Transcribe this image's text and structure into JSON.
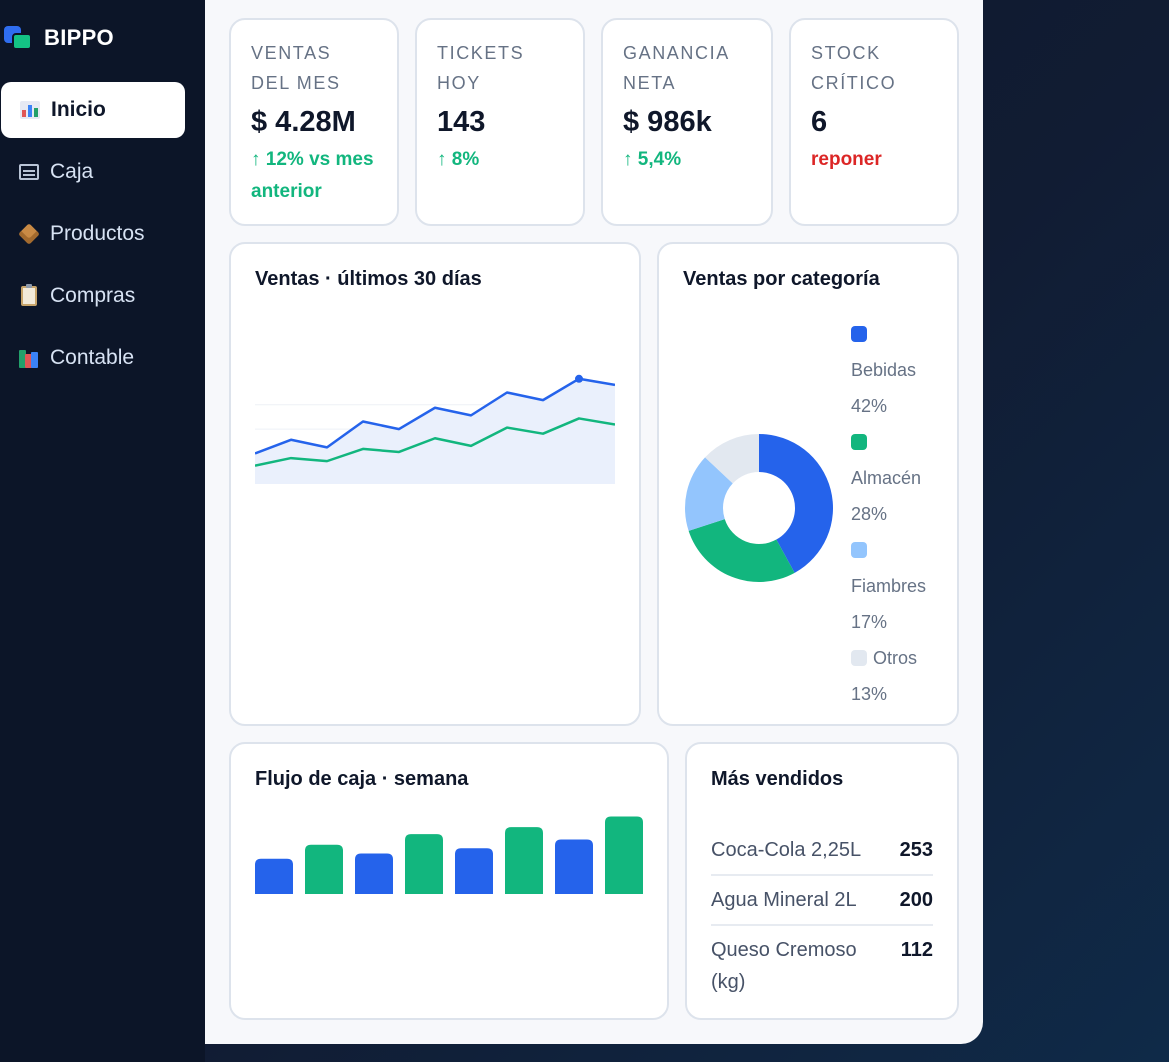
{
  "app": {
    "name": "BIPPO"
  },
  "sidebar": {
    "items": [
      {
        "label": "Inicio",
        "icon": "chart-bars-icon",
        "active": true
      },
      {
        "label": "Caja",
        "icon": "cart-icon",
        "active": false
      },
      {
        "label": "Productos",
        "icon": "package-icon",
        "active": false
      },
      {
        "label": "Compras",
        "icon": "clipboard-icon",
        "active": false
      },
      {
        "label": "Contable",
        "icon": "books-icon",
        "active": false
      }
    ]
  },
  "kpis": [
    {
      "label": "VENTAS DEL MES",
      "value": "$ 4.28M",
      "delta": "↑ 12% vs mes anterior",
      "trend": "up"
    },
    {
      "label": "TICKETS HOY",
      "value": "143",
      "delta": "↑ 8%",
      "trend": "up"
    },
    {
      "label": "GANANCIA NETA",
      "value": "$ 986k",
      "delta": "↑ 5,4%",
      "trend": "up"
    },
    {
      "label": "STOCK CRÍTICO",
      "value": "6",
      "delta": "reponer",
      "trend": "down"
    }
  ],
  "sales_chart": {
    "title": "Ventas · últimos 30 días"
  },
  "category_chart": {
    "title": "Ventas por categoría"
  },
  "cashflow_chart": {
    "title": "Flujo de caja · semana"
  },
  "top_products": {
    "title": "Más vendidos",
    "rows": [
      {
        "name": "Coca-Cola 2,25L",
        "qty": "253"
      },
      {
        "name": "Agua Mineral 2L",
        "qty": "200"
      },
      {
        "name": "Queso Cremoso (kg)",
        "qty": "112"
      }
    ]
  },
  "colors": {
    "blue": "#2563eb",
    "green": "#12b67e",
    "light_blue": "#93c5fd",
    "gray": "#e2e8f0",
    "red": "#dc2626"
  },
  "chart_data": [
    {
      "type": "line",
      "title": "Ventas · últimos 30 días",
      "x": [
        1,
        2,
        3,
        4,
        5,
        6,
        7,
        8,
        9,
        10,
        11
      ],
      "series": [
        {
          "color": "#2563eb",
          "values": [
            20,
            29,
            24,
            41,
            36,
            50,
            45,
            60,
            55,
            69,
            65
          ]
        },
        {
          "color": "#12b67e",
          "values": [
            12,
            17,
            15,
            23,
            21,
            30,
            25,
            37,
            33,
            43,
            39
          ]
        }
      ],
      "ylim": [
        0,
        80
      ]
    },
    {
      "type": "pie",
      "title": "Ventas por categoría",
      "categories": [
        "Bebidas",
        "Almacén",
        "Fiambres",
        "Otros"
      ],
      "values": [
        42,
        28,
        17,
        13
      ],
      "value_labels": [
        "42%",
        "28%",
        "17%",
        "13%"
      ],
      "colors": [
        "#2563eb",
        "#12b67e",
        "#93c5fd",
        "#e2e8f0"
      ]
    },
    {
      "type": "bar",
      "title": "Flujo de caja · semana",
      "values": [
        40,
        56,
        46,
        68,
        52,
        76,
        62,
        88
      ],
      "colors": [
        "#2563eb",
        "#12b67e",
        "#2563eb",
        "#12b67e",
        "#2563eb",
        "#12b67e",
        "#2563eb",
        "#12b67e"
      ],
      "ylim": [
        0,
        100
      ]
    }
  ]
}
